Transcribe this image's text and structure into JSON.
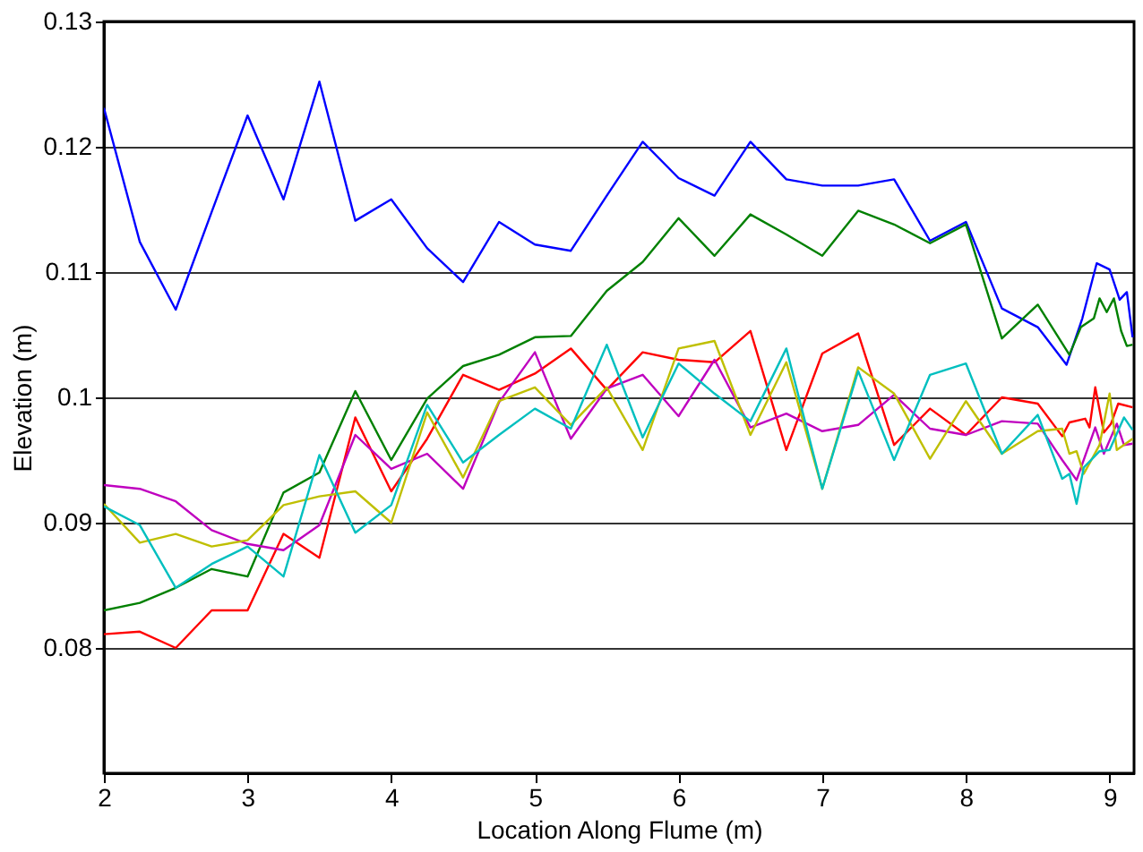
{
  "chart_data": {
    "type": "line",
    "xlabel": "Location Along Flume (m)",
    "ylabel": "Elevation (m)",
    "xlim": [
      2,
      9.17
    ],
    "xticks": [
      2,
      3,
      4,
      5,
      6,
      7,
      8,
      9
    ],
    "ylim": [
      0.07,
      0.13
    ],
    "yticks": [
      0.08,
      0.09,
      0.1,
      0.11,
      0.12,
      0.13
    ],
    "grid": "y",
    "legend": false,
    "marker": "none",
    "line_style": "solid",
    "series": [
      {
        "color": "#0000ff",
        "x": [
          2,
          2.25,
          2.5,
          2.75,
          3,
          3.25,
          3.5,
          3.75,
          4,
          4.25,
          4.5,
          4.75,
          5,
          5.25,
          5.5,
          5.75,
          6,
          6.25,
          6.5,
          6.75,
          7,
          7.25,
          7.5,
          7.75,
          8,
          8.25,
          8.5,
          8.7,
          8.81,
          8.91,
          9.0,
          9.07,
          9.12,
          9.16
        ],
        "values": [
          0.1231,
          0.1124,
          0.107,
          0.1148,
          0.1225,
          0.1158,
          0.1252,
          0.1141,
          0.1158,
          0.1119,
          0.1092,
          0.114,
          0.1122,
          0.1117,
          0.1161,
          0.1204,
          0.1175,
          0.1161,
          0.1204,
          0.1174,
          0.1169,
          0.1169,
          0.1174,
          0.1125,
          0.114,
          0.1071,
          0.1056,
          0.1026,
          0.1063,
          0.1107,
          0.1102,
          0.1078,
          0.1084,
          0.1048
        ]
      },
      {
        "color": "#008000",
        "x": [
          2,
          2.25,
          2.5,
          2.75,
          3,
          3.25,
          3.5,
          3.75,
          4,
          4.25,
          4.5,
          4.75,
          5,
          5.25,
          5.5,
          5.75,
          6,
          6.25,
          6.5,
          6.75,
          7,
          7.25,
          7.5,
          7.75,
          8,
          8.25,
          8.5,
          8.72,
          8.8,
          8.89,
          8.93,
          8.98,
          9.03,
          9.08,
          9.12,
          9.16
        ],
        "values": [
          0.083,
          0.0836,
          0.0848,
          0.0863,
          0.0857,
          0.0924,
          0.094,
          0.1005,
          0.095,
          0.0999,
          0.1025,
          0.1034,
          0.1048,
          0.1049,
          0.1085,
          0.1108,
          0.1143,
          0.1113,
          0.1146,
          0.113,
          0.1113,
          0.1149,
          0.1138,
          0.1123,
          0.1138,
          0.1047,
          0.1074,
          0.1034,
          0.1056,
          0.1063,
          0.1079,
          0.1068,
          0.1079,
          0.1053,
          0.1041,
          0.1042
        ]
      },
      {
        "color": "#ff0000",
        "x": [
          2,
          2.25,
          2.5,
          2.75,
          3,
          3.25,
          3.5,
          3.75,
          4,
          4.25,
          4.5,
          4.75,
          5,
          5.25,
          5.5,
          5.75,
          6,
          6.25,
          6.5,
          6.75,
          7,
          7.25,
          7.5,
          7.75,
          8,
          8.25,
          8.5,
          8.67,
          8.72,
          8.83,
          8.86,
          8.9,
          8.96,
          9.01,
          9.06,
          9.16
        ],
        "values": [
          0.0811,
          0.0813,
          0.08,
          0.083,
          0.083,
          0.0891,
          0.0872,
          0.0984,
          0.0925,
          0.0967,
          0.1018,
          0.1006,
          0.1019,
          0.1039,
          0.1006,
          0.1036,
          0.103,
          0.1028,
          0.1053,
          0.0958,
          0.1035,
          0.1051,
          0.0962,
          0.0991,
          0.097,
          0.1,
          0.0995,
          0.0969,
          0.098,
          0.0983,
          0.0976,
          0.1008,
          0.0972,
          0.0979,
          0.0995,
          0.0992
        ]
      },
      {
        "color": "#bf00bf",
        "x": [
          2,
          2.25,
          2.5,
          2.75,
          3,
          3.25,
          3.5,
          3.75,
          4,
          4.25,
          4.5,
          4.75,
          5,
          5.25,
          5.5,
          5.75,
          6,
          6.25,
          6.5,
          6.75,
          7,
          7.25,
          7.5,
          7.75,
          8,
          8.25,
          8.5,
          8.67,
          8.77,
          8.9,
          8.96,
          9.05,
          9.1,
          9.16
        ],
        "values": [
          0.093,
          0.0927,
          0.0917,
          0.0894,
          0.0883,
          0.0878,
          0.0898,
          0.097,
          0.0943,
          0.0955,
          0.0927,
          0.0996,
          0.1036,
          0.0967,
          0.1007,
          0.1018,
          0.0985,
          0.103,
          0.0976,
          0.0987,
          0.0973,
          0.0978,
          0.1002,
          0.0975,
          0.097,
          0.0981,
          0.0979,
          0.095,
          0.0934,
          0.0976,
          0.0955,
          0.0979,
          0.0962,
          0.0963
        ]
      },
      {
        "color": "#bfbf00",
        "x": [
          2,
          2.25,
          2.5,
          2.75,
          3,
          3.25,
          3.5,
          3.75,
          4,
          4.25,
          4.5,
          4.75,
          5,
          5.25,
          5.5,
          5.75,
          6,
          6.25,
          6.5,
          6.75,
          7,
          7.25,
          7.5,
          7.75,
          8,
          8.25,
          8.5,
          8.67,
          8.72,
          8.77,
          8.82,
          8.93,
          9.0,
          9.05,
          9.16
        ],
        "values": [
          0.0915,
          0.0884,
          0.0891,
          0.0881,
          0.0886,
          0.0914,
          0.0921,
          0.0925,
          0.09,
          0.0988,
          0.0936,
          0.0997,
          0.1008,
          0.0978,
          0.1008,
          0.0958,
          0.1039,
          0.1045,
          0.097,
          0.1028,
          0.0927,
          0.1024,
          0.1003,
          0.0951,
          0.0997,
          0.0955,
          0.0973,
          0.0975,
          0.0955,
          0.0957,
          0.0939,
          0.0962,
          0.1003,
          0.0958,
          0.0967
        ]
      },
      {
        "color": "#00bfbf",
        "x": [
          2,
          2.25,
          2.5,
          2.75,
          3,
          3.25,
          3.5,
          3.75,
          4,
          4.25,
          4.5,
          4.75,
          5,
          5.25,
          5.5,
          5.75,
          6,
          6.25,
          6.5,
          6.75,
          7,
          7.25,
          7.5,
          7.75,
          8,
          8.25,
          8.5,
          8.67,
          8.72,
          8.77,
          8.82,
          8.93,
          9.0,
          9.1,
          9.16
        ],
        "values": [
          0.0913,
          0.0898,
          0.0848,
          0.0867,
          0.0881,
          0.0857,
          0.0954,
          0.0892,
          0.0914,
          0.0994,
          0.0948,
          0.097,
          0.0991,
          0.0975,
          0.1042,
          0.0968,
          0.1027,
          0.1003,
          0.0981,
          0.1039,
          0.0927,
          0.1021,
          0.095,
          0.1018,
          0.1027,
          0.0955,
          0.0986,
          0.0935,
          0.0939,
          0.0915,
          0.0944,
          0.0957,
          0.0958,
          0.0984,
          0.0974
        ]
      }
    ]
  }
}
